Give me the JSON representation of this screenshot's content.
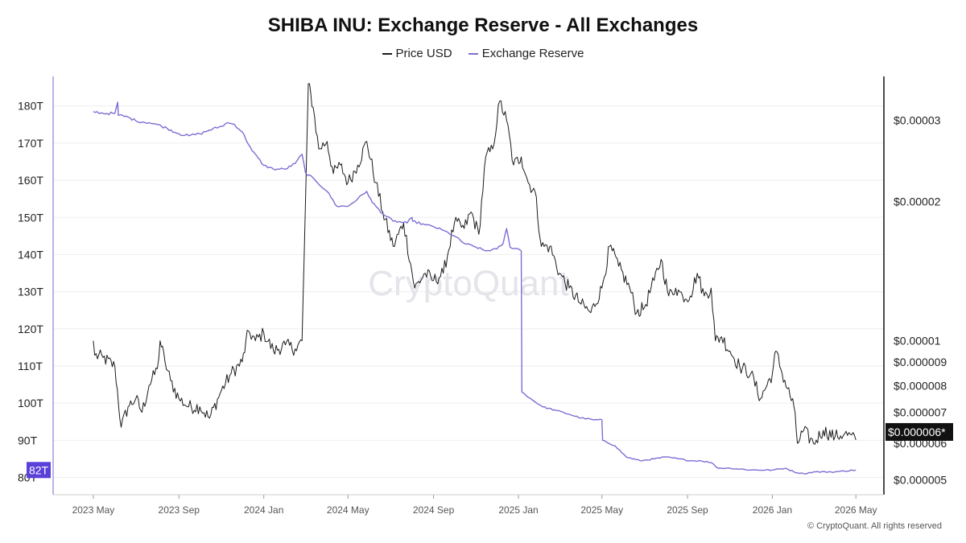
{
  "chart_data": {
    "type": "line",
    "title": "SHIBA INU: Exchange Reserve - All Exchanges",
    "legend": {
      "placement": "top-center"
    },
    "grid": true,
    "watermark": "CryptoQuant",
    "copyright": "© CryptoQuant. All rights reserved",
    "x_ticks": [
      "2023 May",
      "2023 Sep",
      "2024 Jan",
      "2024 May",
      "2024 Sep",
      "2025 Jan",
      "2025 May",
      "2025 Sep",
      "2026 Jan",
      "2026 May"
    ],
    "x_range": [
      "2023-04-01",
      "2026-06-01"
    ],
    "y_left": {
      "ticks": [
        "180T",
        "170T",
        "160T",
        "150T",
        "140T",
        "130T",
        "120T",
        "110T",
        "100T",
        "90T",
        "80T"
      ],
      "range": [
        76,
        186
      ],
      "current_label": "82T",
      "current_value": 82
    },
    "y_right": {
      "scale": "log",
      "ticks": [
        "$0.00003",
        "$0.00002",
        "$0.00001",
        "$0.000009",
        "$0.000008",
        "$0.000007",
        "$0.000006",
        "$0.000005"
      ],
      "tick_values": [
        3e-05,
        2e-05,
        1e-05,
        9e-06,
        8e-06,
        7e-06,
        6e-06,
        5e-06
      ],
      "range": [
        4.7e-06,
        3.6e-05
      ],
      "current_label": "$0.000006*",
      "current_value": 6.1e-06
    },
    "colors": {
      "price": "#1a1a1a",
      "reserve": "#7b6fd4",
      "current_left_bg": "#5b3fd9",
      "current_right_bg": "#111111",
      "axis": "#b9b3e6",
      "grid": "#eeeeee"
    },
    "series": [
      {
        "name": "Price USD",
        "axis": "right",
        "points": [
          [
            "2023-05-01",
            1e-05
          ],
          [
            "2023-05-03",
            9.3e-06
          ],
          [
            "2023-05-15",
            9.2e-06
          ],
          [
            "2023-06-01",
            8.8e-06
          ],
          [
            "2023-06-10",
            6.5e-06
          ],
          [
            "2023-06-20",
            7.2e-06
          ],
          [
            "2023-07-01",
            7.5e-06
          ],
          [
            "2023-07-10",
            7e-06
          ],
          [
            "2023-07-20",
            8e-06
          ],
          [
            "2023-08-01",
            8.7e-06
          ],
          [
            "2023-08-05",
            1e-05
          ],
          [
            "2023-08-12",
            9e-06
          ],
          [
            "2023-08-20",
            8.2e-06
          ],
          [
            "2023-09-01",
            7.5e-06
          ],
          [
            "2023-09-15",
            7.2e-06
          ],
          [
            "2023-10-01",
            7.2e-06
          ],
          [
            "2023-10-15",
            6.8e-06
          ],
          [
            "2023-11-01",
            7.8e-06
          ],
          [
            "2023-11-15",
            8.5e-06
          ],
          [
            "2023-12-01",
            9e-06
          ],
          [
            "2023-12-10",
            1.05e-05
          ],
          [
            "2023-12-20",
            1e-05
          ],
          [
            "2024-01-01",
            1.04e-05
          ],
          [
            "2024-01-15",
            9.5e-06
          ],
          [
            "2024-02-01",
            9.8e-06
          ],
          [
            "2024-02-15",
            9.6e-06
          ],
          [
            "2024-02-25",
            1e-05
          ],
          [
            "2024-03-01",
            2e-05
          ],
          [
            "2024-03-05",
            3.6e-05
          ],
          [
            "2024-03-12",
            3.2e-05
          ],
          [
            "2024-03-20",
            2.6e-05
          ],
          [
            "2024-04-01",
            2.7e-05
          ],
          [
            "2024-04-10",
            2.3e-05
          ],
          [
            "2024-04-20",
            2.4e-05
          ],
          [
            "2024-05-01",
            2.2e-05
          ],
          [
            "2024-05-15",
            2.4e-05
          ],
          [
            "2024-05-28",
            2.7e-05
          ],
          [
            "2024-06-10",
            2.2e-05
          ],
          [
            "2024-06-20",
            1.9e-05
          ],
          [
            "2024-07-05",
            1.6e-05
          ],
          [
            "2024-07-20",
            1.8e-05
          ],
          [
            "2024-08-05",
            1.3e-05
          ],
          [
            "2024-08-20",
            1.4e-05
          ],
          [
            "2024-09-01",
            1.35e-05
          ],
          [
            "2024-09-15",
            1.4e-05
          ],
          [
            "2024-10-01",
            1.8e-05
          ],
          [
            "2024-10-15",
            1.75e-05
          ],
          [
            "2024-10-25",
            1.9e-05
          ],
          [
            "2024-11-05",
            1.7e-05
          ],
          [
            "2024-11-15",
            2.5e-05
          ],
          [
            "2024-11-25",
            2.6e-05
          ],
          [
            "2024-12-05",
            3.3e-05
          ],
          [
            "2024-12-15",
            3e-05
          ],
          [
            "2024-12-25",
            2.4e-05
          ],
          [
            "2025-01-05",
            2.5e-05
          ],
          [
            "2025-01-15",
            2.2e-05
          ],
          [
            "2025-01-25",
            2.1e-05
          ],
          [
            "2025-02-03",
            1.6e-05
          ],
          [
            "2025-02-15",
            1.6e-05
          ],
          [
            "2025-03-01",
            1.4e-05
          ],
          [
            "2025-03-15",
            1.3e-05
          ],
          [
            "2025-04-01",
            1.2e-05
          ],
          [
            "2025-04-15",
            1.15e-05
          ],
          [
            "2025-05-01",
            1.3e-05
          ],
          [
            "2025-05-12",
            1.6e-05
          ],
          [
            "2025-05-25",
            1.45e-05
          ],
          [
            "2025-06-10",
            1.3e-05
          ],
          [
            "2025-06-20",
            1.15e-05
          ],
          [
            "2025-07-01",
            1.18e-05
          ],
          [
            "2025-07-15",
            1.35e-05
          ],
          [
            "2025-07-25",
            1.5e-05
          ],
          [
            "2025-08-05",
            1.25e-05
          ],
          [
            "2025-08-15",
            1.3e-05
          ],
          [
            "2025-08-25",
            1.25e-05
          ],
          [
            "2025-09-05",
            1.25e-05
          ],
          [
            "2025-09-15",
            1.4e-05
          ],
          [
            "2025-09-25",
            1.25e-05
          ],
          [
            "2025-10-05",
            1.3e-05
          ],
          [
            "2025-10-11",
            1e-05
          ],
          [
            "2025-10-20",
            1.02e-05
          ],
          [
            "2025-11-01",
            9.5e-06
          ],
          [
            "2025-11-15",
            8.8e-06
          ],
          [
            "2025-12-01",
            8.5e-06
          ],
          [
            "2025-12-15",
            7.5e-06
          ],
          [
            "2026-01-01",
            8.5e-06
          ],
          [
            "2026-01-06",
            9.5e-06
          ],
          [
            "2026-01-15",
            8.5e-06
          ],
          [
            "2026-02-01",
            7.2e-06
          ],
          [
            "2026-02-06",
            6e-06
          ],
          [
            "2026-02-15",
            6.4e-06
          ],
          [
            "2026-03-01",
            6e-06
          ],
          [
            "2026-03-15",
            6.4e-06
          ],
          [
            "2026-04-01",
            6.2e-06
          ],
          [
            "2026-04-15",
            6.3e-06
          ],
          [
            "2026-05-01",
            6.1e-06
          ]
        ]
      },
      {
        "name": "Exchange Reserve",
        "axis": "left",
        "points": [
          [
            "2023-05-01",
            178.5
          ],
          [
            "2023-05-15",
            178.0
          ],
          [
            "2023-06-01",
            178.0
          ],
          [
            "2023-06-05",
            181.0
          ],
          [
            "2023-06-06",
            177.5
          ],
          [
            "2023-06-20",
            177.0
          ],
          [
            "2023-07-01",
            176.0
          ],
          [
            "2023-07-20",
            175.5
          ],
          [
            "2023-08-01",
            175.0
          ],
          [
            "2023-08-15",
            174.0
          ],
          [
            "2023-09-01",
            172.5
          ],
          [
            "2023-09-15",
            172.0
          ],
          [
            "2023-10-01",
            172.5
          ],
          [
            "2023-10-15",
            173.5
          ],
          [
            "2023-11-01",
            174.5
          ],
          [
            "2023-11-10",
            175.5
          ],
          [
            "2023-11-20",
            175.0
          ],
          [
            "2023-12-01",
            173.0
          ],
          [
            "2023-12-15",
            168.0
          ],
          [
            "2024-01-01",
            164.0
          ],
          [
            "2024-01-15",
            163.0
          ],
          [
            "2024-02-01",
            163.0
          ],
          [
            "2024-02-15",
            164.5
          ],
          [
            "2024-02-25",
            167.0
          ],
          [
            "2024-03-01",
            162.0
          ],
          [
            "2024-03-15",
            160.0
          ],
          [
            "2024-04-01",
            157.0
          ],
          [
            "2024-04-15",
            153.0
          ],
          [
            "2024-05-01",
            153.0
          ],
          [
            "2024-05-15",
            155.0
          ],
          [
            "2024-05-28",
            157.0
          ],
          [
            "2024-06-05",
            154.0
          ],
          [
            "2024-06-20",
            151.0
          ],
          [
            "2024-07-05",
            149.0
          ],
          [
            "2024-07-25",
            148.5
          ],
          [
            "2024-08-01",
            150.0
          ],
          [
            "2024-08-02",
            149.0
          ],
          [
            "2024-08-20",
            148.0
          ],
          [
            "2024-09-01",
            147.5
          ],
          [
            "2024-09-15",
            146.5
          ],
          [
            "2024-10-01",
            145.0
          ],
          [
            "2024-10-15",
            143.0
          ],
          [
            "2024-11-01",
            142.0
          ],
          [
            "2024-11-15",
            141.0
          ],
          [
            "2024-12-01",
            141.5
          ],
          [
            "2024-12-10",
            143.0
          ],
          [
            "2024-12-15",
            147.0
          ],
          [
            "2024-12-20",
            142.0
          ],
          [
            "2025-01-01",
            141.5
          ],
          [
            "2025-01-05",
            141.0
          ],
          [
            "2025-01-06",
            103.0
          ],
          [
            "2025-01-20",
            101.0
          ],
          [
            "2025-02-05",
            99.0
          ],
          [
            "2025-02-25",
            98.0
          ],
          [
            "2025-03-15",
            97.0
          ],
          [
            "2025-04-01",
            96.0
          ],
          [
            "2025-04-20",
            95.5
          ],
          [
            "2025-05-01",
            95.5
          ],
          [
            "2025-05-02",
            90.0
          ],
          [
            "2025-05-20",
            88.5
          ],
          [
            "2025-06-05",
            85.5
          ],
          [
            "2025-06-25",
            84.5
          ],
          [
            "2025-07-15",
            85.0
          ],
          [
            "2025-08-01",
            85.5
          ],
          [
            "2025-08-20",
            85.0
          ],
          [
            "2025-09-05",
            84.5
          ],
          [
            "2025-09-20",
            84.5
          ],
          [
            "2025-10-05",
            84.0
          ],
          [
            "2025-10-15",
            82.5
          ],
          [
            "2025-11-01",
            82.5
          ],
          [
            "2025-12-01",
            82.0
          ],
          [
            "2026-01-01",
            82.0
          ],
          [
            "2026-01-20",
            82.5
          ],
          [
            "2026-02-01",
            81.5
          ],
          [
            "2026-02-15",
            81.0
          ],
          [
            "2026-03-01",
            81.5
          ],
          [
            "2026-04-01",
            81.5
          ],
          [
            "2026-05-01",
            82.0
          ]
        ]
      }
    ]
  }
}
